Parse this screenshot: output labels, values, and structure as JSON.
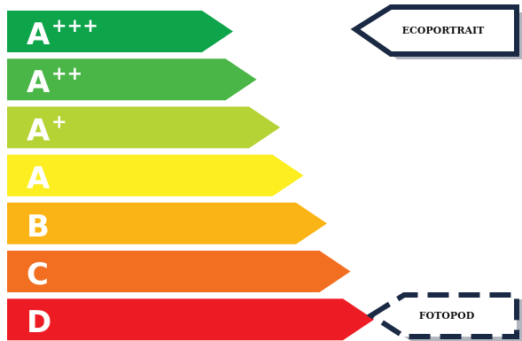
{
  "rating_bars": [
    {
      "letter": "A",
      "sup": "+++",
      "color": "#0ea44a"
    },
    {
      "letter": "A",
      "sup": "++",
      "color": "#4bb648"
    },
    {
      "letter": "A",
      "sup": "+",
      "color": "#b5d334"
    },
    {
      "letter": "A",
      "sup": "",
      "color": "#fcee21"
    },
    {
      "letter": "B",
      "sup": "",
      "color": "#fbb416"
    },
    {
      "letter": "C",
      "sup": "",
      "color": "#f26f22"
    },
    {
      "letter": "D",
      "sup": "",
      "color": "#ed1c24"
    }
  ],
  "callouts": [
    {
      "label": "ECOPORTRAIT",
      "style": "solid",
      "border_color": "#1b2a44",
      "rating": "A+++"
    },
    {
      "label": "FOTOPOD",
      "style": "dashed",
      "border_color": "#1b2a44",
      "rating": "D"
    }
  ]
}
